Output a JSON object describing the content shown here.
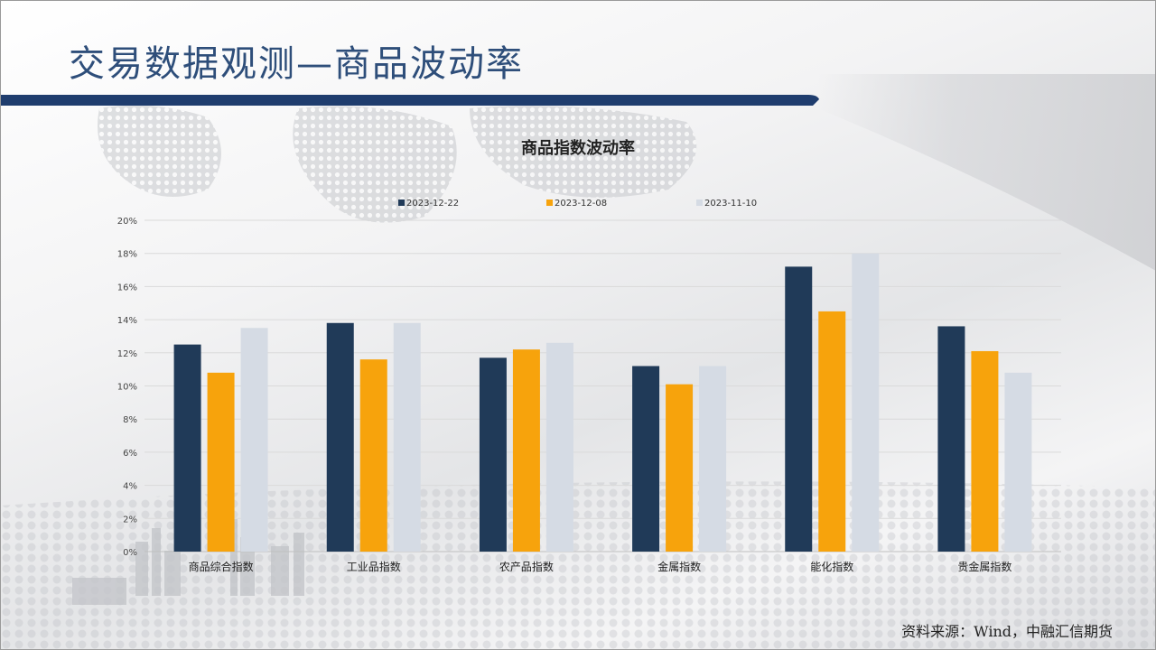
{
  "slide": {
    "title": "交易数据观测—商品波动率",
    "source": "资料来源：Wind，中融汇信期货"
  },
  "colors": {
    "title": "#2e4e7a",
    "banner": "#1f3d6e",
    "series": [
      "#203a58",
      "#f7a30c",
      "#d5dbe4"
    ]
  },
  "chart_data": {
    "type": "bar",
    "title": "商品指数波动率",
    "categories": [
      "商品综合指数",
      "工业品指数",
      "农产品指数",
      "金属指数",
      "能化指数",
      "贵金属指数"
    ],
    "series": [
      {
        "name": "2023-12-22",
        "values": [
          12.5,
          13.8,
          11.7,
          11.2,
          17.2,
          13.6
        ]
      },
      {
        "name": "2023-12-08",
        "values": [
          10.8,
          11.6,
          12.2,
          10.1,
          14.5,
          12.1
        ]
      },
      {
        "name": "2023-11-10",
        "values": [
          13.5,
          13.8,
          12.6,
          11.2,
          18.0,
          10.8
        ]
      }
    ],
    "yticks": [
      "0%",
      "2%",
      "4%",
      "6%",
      "8%",
      "10%",
      "12%",
      "14%",
      "16%",
      "18%",
      "20%"
    ],
    "ylim": [
      0,
      20
    ],
    "grid": true,
    "legend": "top"
  }
}
